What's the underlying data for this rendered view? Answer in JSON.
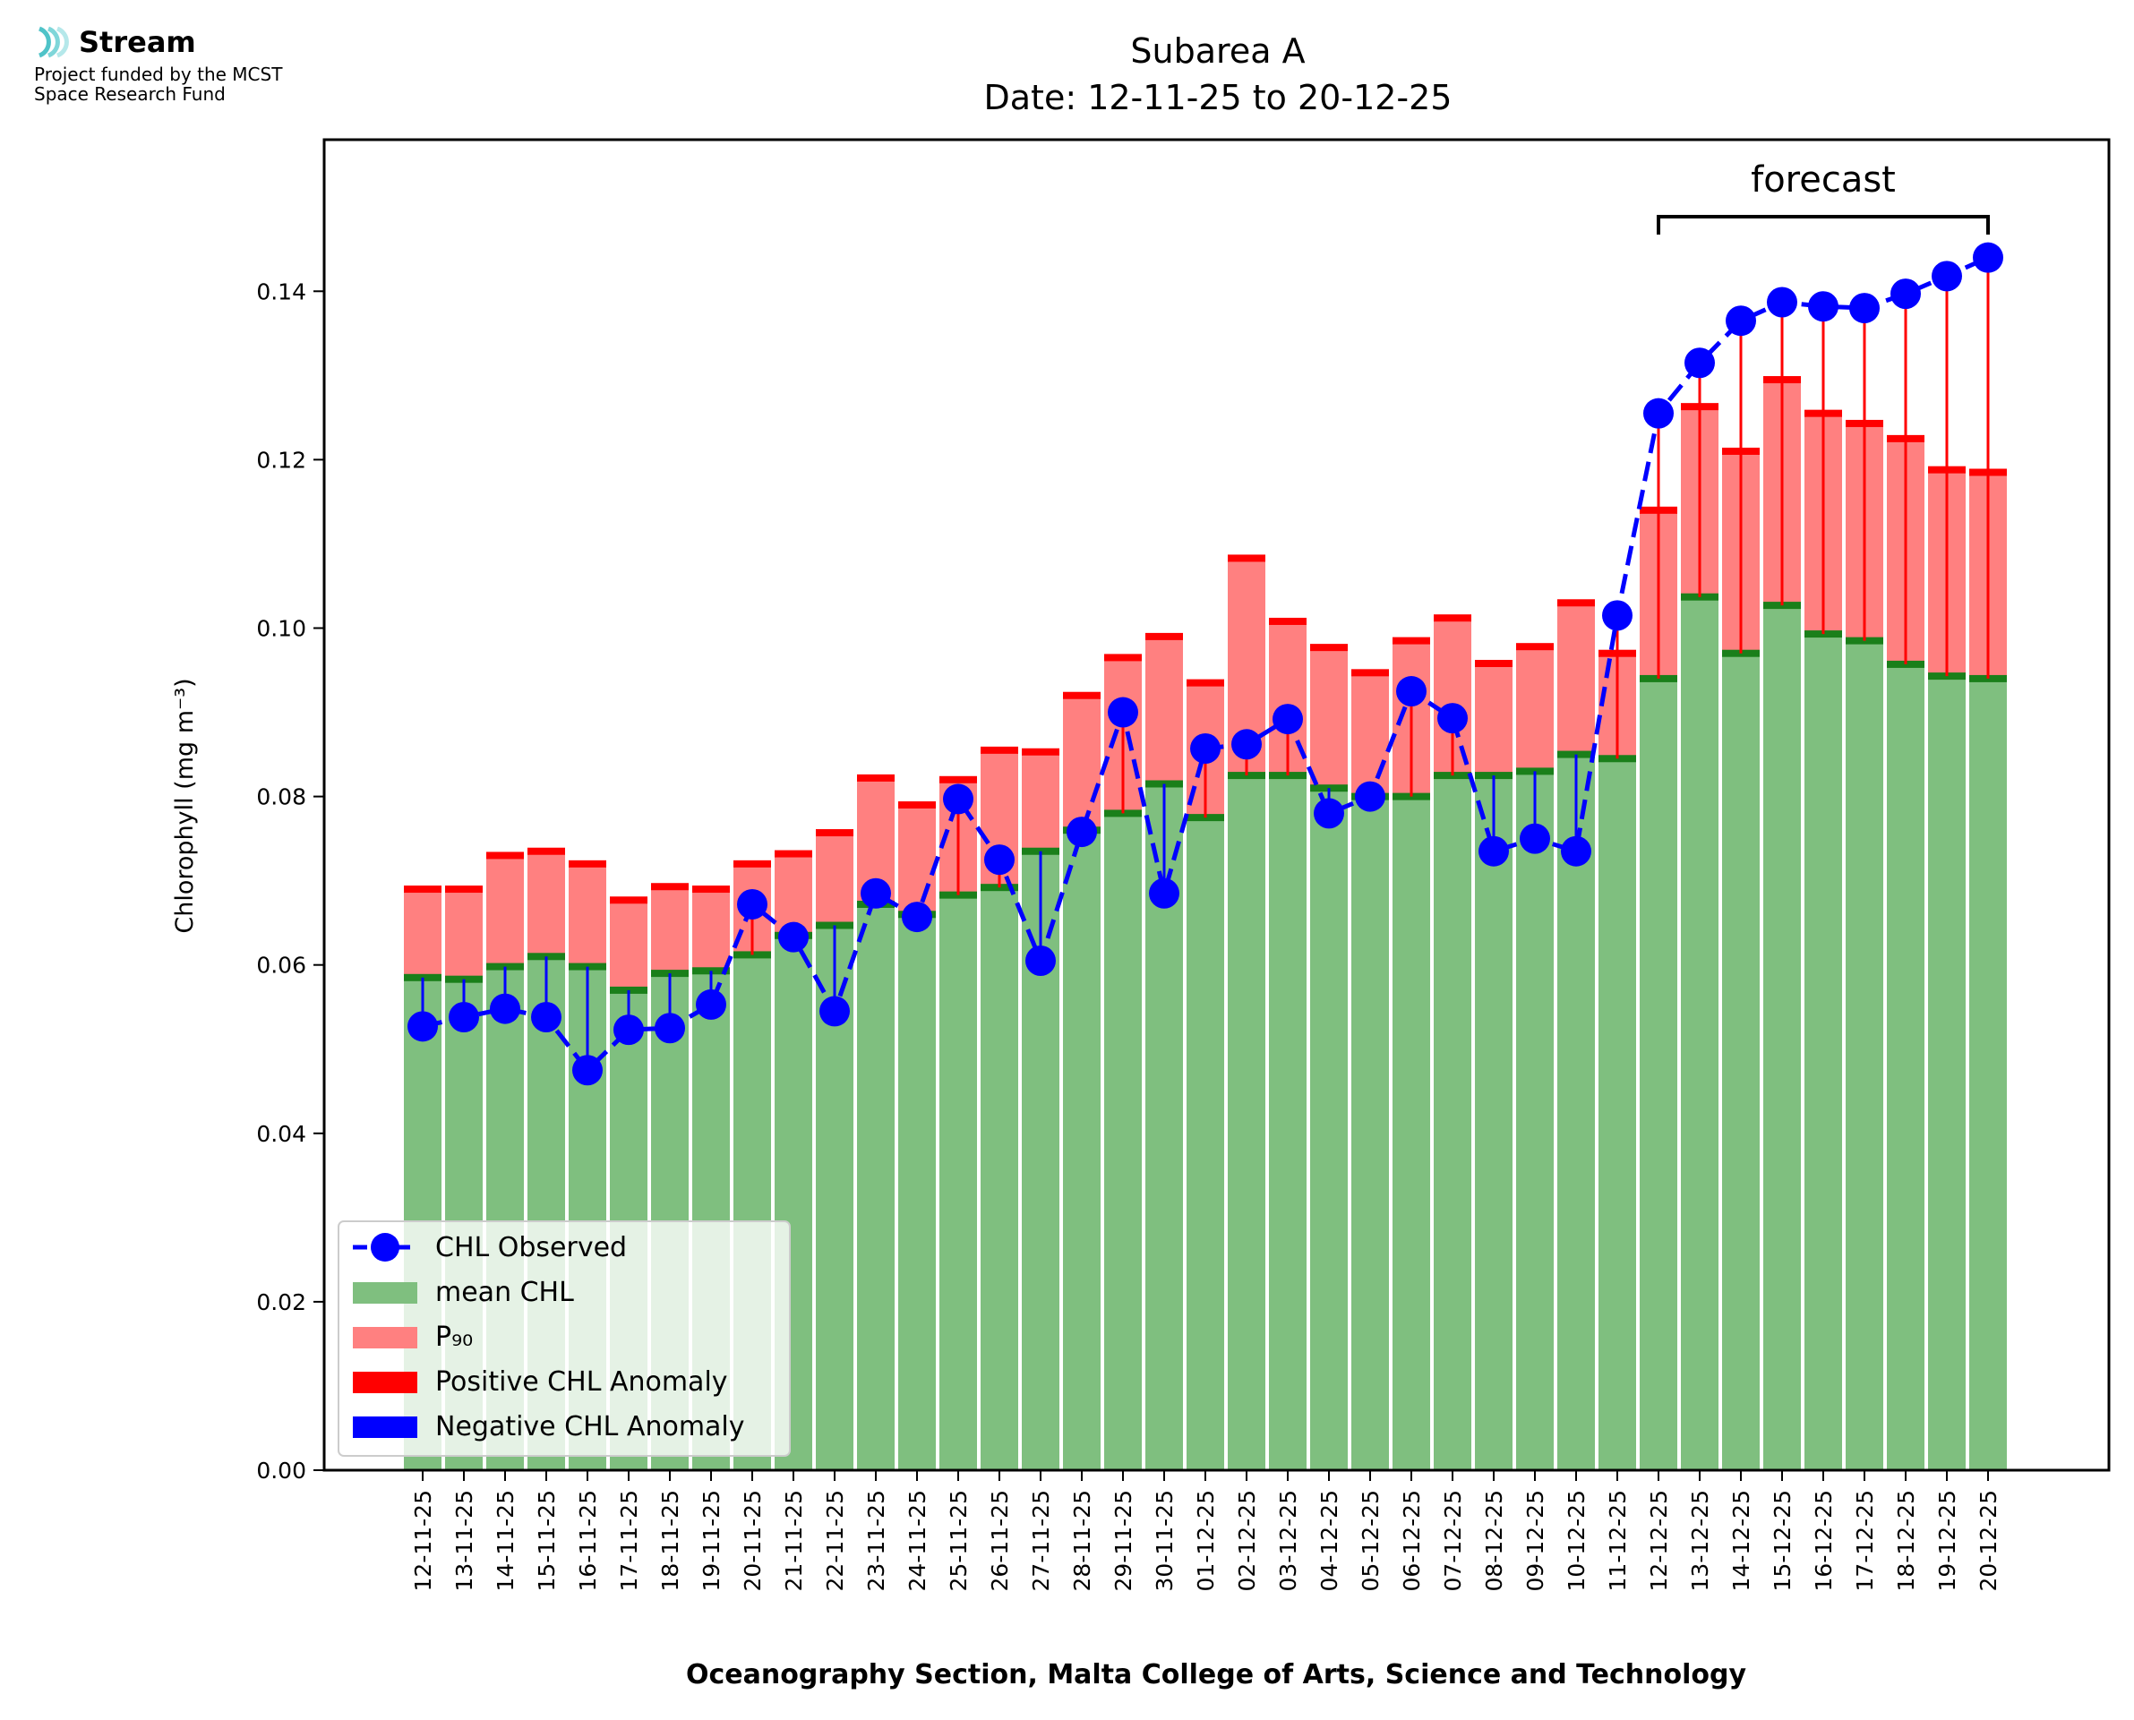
{
  "logo": {
    "name": "Stream",
    "funded_line1": "Project funded by the MCST",
    "funded_line2": "Space Research Fund",
    "accent_color": "#4fc3c8"
  },
  "chart_data": {
    "type": "bar",
    "title": "Subarea A",
    "subtitle": "Date: 12-11-25 to 20-12-25",
    "xlabel": "Oceanography Section, Malta College of Arts, Science and Technology",
    "ylabel": "Chlorophyll (mg m⁻³)",
    "ylim": [
      0,
      0.158
    ],
    "yticks": [
      0.0,
      0.02,
      0.04,
      0.06,
      0.08,
      0.1,
      0.12,
      0.14
    ],
    "ytick_labels": [
      "0.00",
      "0.02",
      "0.04",
      "0.06",
      "0.08",
      "0.10",
      "0.12",
      "0.14"
    ],
    "categories": [
      "12-11-25",
      "13-11-25",
      "14-11-25",
      "15-11-25",
      "16-11-25",
      "17-11-25",
      "18-11-25",
      "19-11-25",
      "20-11-25",
      "21-11-25",
      "22-11-25",
      "23-11-25",
      "24-11-25",
      "25-11-25",
      "26-11-25",
      "27-11-25",
      "28-11-25",
      "29-11-25",
      "30-11-25",
      "01-12-25",
      "02-12-25",
      "03-12-25",
      "04-12-25",
      "05-12-25",
      "06-12-25",
      "07-12-25",
      "08-12-25",
      "09-12-25",
      "10-12-25",
      "11-12-25",
      "12-12-25",
      "13-12-25",
      "14-12-25",
      "15-12-25",
      "16-12-25",
      "17-12-25",
      "18-12-25",
      "19-12-25",
      "20-12-25"
    ],
    "series": [
      {
        "name": "mean CHL",
        "color": "#7fbf7f",
        "values": [
          0.0585,
          0.0583,
          0.0598,
          0.061,
          0.0598,
          0.057,
          0.059,
          0.0593,
          0.0612,
          0.0635,
          0.0647,
          0.0672,
          0.066,
          0.0683,
          0.0692,
          0.0735,
          0.076,
          0.078,
          0.0815,
          0.0775,
          0.0825,
          0.0825,
          0.081,
          0.08,
          0.08,
          0.0825,
          0.0825,
          0.083,
          0.085,
          0.0845,
          0.094,
          0.1037,
          0.097,
          0.1027,
          0.0993,
          0.0985,
          0.0957,
          0.0943,
          0.094
        ]
      },
      {
        "name": "P₉₀",
        "color": "#ff8080",
        "values": [
          0.069,
          0.069,
          0.073,
          0.0735,
          0.072,
          0.0677,
          0.0693,
          0.069,
          0.072,
          0.0732,
          0.0757,
          0.0822,
          0.079,
          0.082,
          0.0855,
          0.0853,
          0.092,
          0.0965,
          0.099,
          0.0935,
          0.1083,
          0.1008,
          0.0977,
          0.0947,
          0.0985,
          0.1012,
          0.0958,
          0.0978,
          0.103,
          0.097,
          0.114,
          0.1263,
          0.121,
          0.1295,
          0.1255,
          0.1243,
          0.1225,
          0.1188,
          0.1185
        ]
      },
      {
        "name": "CHL Observed",
        "color": "#0000ff",
        "values": [
          0.0527,
          0.0538,
          0.0548,
          0.0538,
          0.0475,
          0.0523,
          0.0525,
          0.0553,
          0.0672,
          0.0633,
          0.0545,
          0.0685,
          0.0657,
          0.0797,
          0.0725,
          0.0605,
          0.0758,
          0.09,
          0.0685,
          0.0857,
          0.0862,
          0.0892,
          0.078,
          0.08,
          0.0925,
          0.0893,
          0.0735,
          0.075,
          0.0735,
          0.1015,
          0.1255,
          0.1315,
          0.1365,
          0.1387,
          0.1382,
          0.138,
          0.1397,
          0.1418,
          0.144
        ]
      }
    ],
    "legend": {
      "placement": "lower-left",
      "entries": [
        "CHL Observed",
        "mean CHL",
        "P₉₀",
        "Positive CHL Anomaly",
        "Negative CHL Anomaly"
      ]
    },
    "anomaly_colors": {
      "positive": "#ff0000",
      "negative": "#0000ff"
    },
    "annotation": {
      "text": "forecast",
      "from": "12-12-25",
      "to": "20-12-25"
    },
    "grid": false
  }
}
